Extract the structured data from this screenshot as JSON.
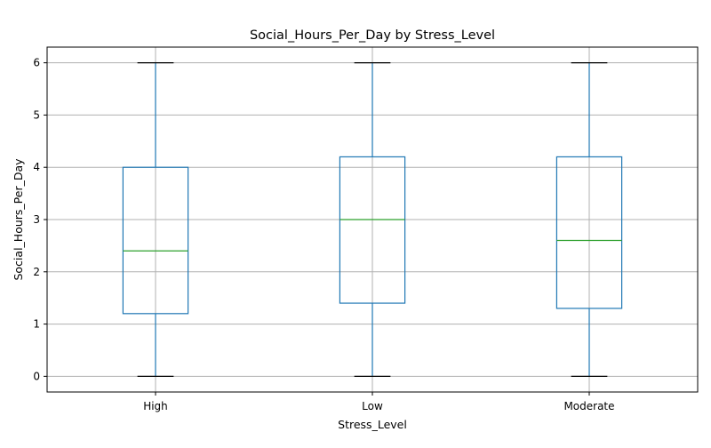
{
  "chart_data": {
    "type": "box",
    "title": "Social_Hours_Per_Day by Stress_Level",
    "xlabel": "Stress_Level",
    "ylabel": "Social_Hours_Per_Day",
    "ylim": [
      -0.3,
      6.3
    ],
    "yticks": [
      0,
      1,
      2,
      3,
      4,
      5,
      6
    ],
    "grid": true,
    "categories": [
      "High",
      "Low",
      "Moderate"
    ],
    "boxes": [
      {
        "category": "High",
        "whisker_low": 0,
        "q1": 1.2,
        "median": 2.4,
        "q3": 4.0,
        "whisker_high": 6
      },
      {
        "category": "Low",
        "whisker_low": 0,
        "q1": 1.4,
        "median": 3.0,
        "q3": 4.2,
        "whisker_high": 6
      },
      {
        "category": "Moderate",
        "whisker_low": 0,
        "q1": 1.3,
        "median": 2.6,
        "q3": 4.2,
        "whisker_high": 6
      }
    ],
    "colors": {
      "box": "#1f77b4",
      "median": "#2ca02c",
      "whisker_cap": "#000000",
      "grid": "#b0b0b0"
    }
  }
}
